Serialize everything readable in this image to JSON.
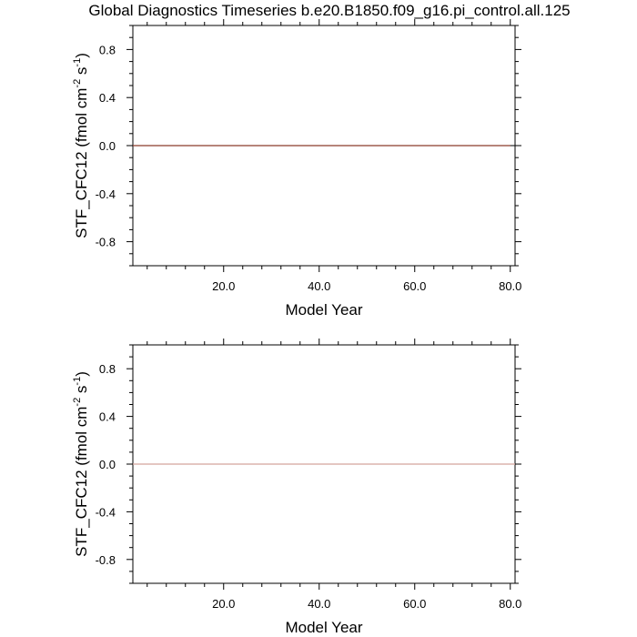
{
  "title": "Global Diagnostics Timeseries b.e20.B1850.f09_g16.pi_control.all.125",
  "chart_data": [
    {
      "type": "line",
      "xlabel": "Model Year",
      "ylabel": "STF_CFC12 (fmol cm⁻² s⁻¹)",
      "ylabel_parts": {
        "prefix": "STF_CFC12 (fmol cm",
        "sup1": "-2",
        "mid": " s",
        "sup2": "-1",
        "suffix": ")"
      },
      "xlim": [
        1,
        81
      ],
      "ylim": [
        -1.0,
        1.0
      ],
      "xticks": [
        20,
        40,
        60,
        80
      ],
      "xtick_labels": [
        "20.0",
        "40.0",
        "60.0",
        "80.0"
      ],
      "yticks": [
        0.8,
        0.4,
        0.0,
        -0.4,
        -0.8
      ],
      "ytick_labels": [
        "0.8",
        "0.4",
        "0.0",
        "-0.4",
        "-0.8"
      ],
      "reference_line": {
        "y": 0.0,
        "color": "#000000"
      },
      "series": [
        {
          "x": [
            1,
            80
          ],
          "y": [
            0.0,
            0.0
          ],
          "color": "#8b3a2a"
        }
      ],
      "grid": false
    },
    {
      "type": "line",
      "xlabel": "Model Year",
      "ylabel": "STF_CFC12 (fmol cm⁻² s⁻¹)",
      "ylabel_parts": {
        "prefix": "STF_CFC12 (fmol cm",
        "sup1": "-2",
        "mid": " s",
        "sup2": "-1",
        "suffix": ")"
      },
      "xlim": [
        1,
        81
      ],
      "ylim": [
        -1.0,
        1.0
      ],
      "xticks": [
        20,
        40,
        60,
        80
      ],
      "xtick_labels": [
        "20.0",
        "40.0",
        "60.0",
        "80.0"
      ],
      "yticks": [
        0.8,
        0.4,
        0.0,
        -0.4,
        -0.8
      ],
      "ytick_labels": [
        "0.8",
        "0.4",
        "0.0",
        "-0.4",
        "-0.8"
      ],
      "reference_line": {
        "y": 0.0,
        "color": "#000000"
      },
      "series": [
        {
          "x": [
            1,
            81
          ],
          "y": [
            0.0,
            0.0
          ],
          "color": "#d4a59c"
        }
      ],
      "grid": false
    }
  ]
}
